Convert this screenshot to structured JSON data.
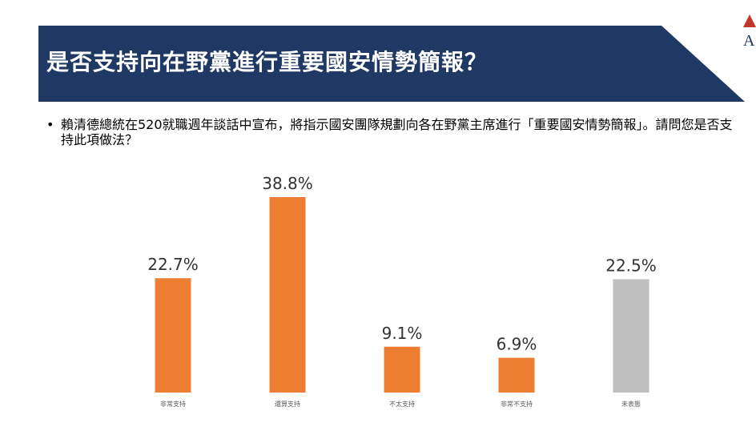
{
  "header": {
    "title": "是否支持向在野黨進行重要國安情勢簡報？",
    "bullet": "•",
    "question": "賴清德總統在520就職週年談話中宣布，將指示國安團隊規劃向各在野黨主席進行「重要國安情勢簡報」。請問您是否支持此項做法？",
    "banner_color": "#1f3864",
    "logo_letter": "A",
    "logo_color": "#c0392b"
  },
  "chart_data": {
    "type": "bar",
    "categories": [
      "非常支持",
      "還算支持",
      "不太支持",
      "非常不支持",
      "未表態"
    ],
    "values": [
      22.7,
      38.8,
      9.1,
      6.9,
      22.5
    ],
    "data_labels": [
      "22.7%",
      "38.8%",
      "9.1%",
      "6.9%",
      "22.5%"
    ],
    "unit": "%",
    "colors": [
      "#ed7d31",
      "#ed7d31",
      "#ed7d31",
      "#ed7d31",
      "#bfbfbf"
    ],
    "title": "",
    "xlabel": "",
    "ylabel": "",
    "ylim": [
      0,
      40
    ],
    "grid": false,
    "legend": "none"
  }
}
